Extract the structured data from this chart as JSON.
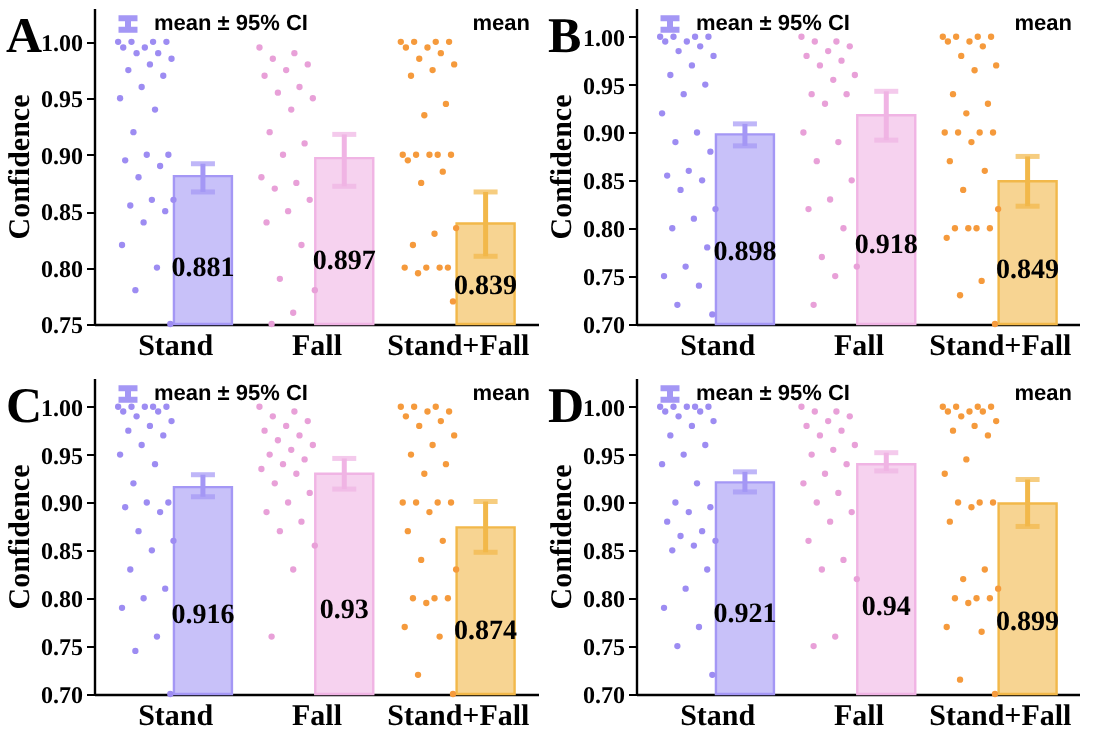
{
  "chart_data": [
    {
      "type": "bar",
      "title": "A",
      "ylabel": "Confidence",
      "categories": [
        "Stand",
        "Fall",
        "Stand+Fall"
      ],
      "ylim": [
        0.75,
        1.03
      ],
      "yticks": [
        0.75,
        {
          "value": 0.8,
          "label": "0.80"
        },
        0.85,
        {
          "value": 0.9,
          "label": "0.90"
        },
        0.95,
        {
          "value": 1,
          "label": "1.00"
        }
      ],
      "annotations": [
        "mean ± 95% CI",
        "mean"
      ],
      "series": [
        {
          "type": "bar",
          "colors": [
            "#a497f5",
            "#f0b4e4",
            "#f2b84a"
          ],
          "values": [
            0.881,
            0.897,
            0.839
          ],
          "value_labels": [
            "0.881",
            "0.897",
            "0.839"
          ],
          "errors": [
            [
              0.867,
              0.892
            ],
            [
              0.872,
              0.918
            ],
            [
              0.81,
              0.867
            ]
          ]
        },
        {
          "type": "scatter",
          "color": "#9d8cf2",
          "x": [
            "Stand",
            "Stand",
            "Stand",
            "Stand",
            "Stand",
            "Stand",
            "Stand",
            "Stand",
            "Stand",
            "Stand",
            "Stand",
            "Stand",
            "Stand",
            "Stand",
            "Stand",
            "Stand",
            "Stand",
            "Stand",
            "Stand",
            "Stand",
            "Stand",
            "Stand",
            "Stand",
            "Stand",
            "Stand",
            "Stand",
            "Stand",
            "Stand",
            "Stand",
            "Stand"
          ],
          "values": [
            1,
            1,
            1,
            1,
            0.995,
            0.995,
            0.99,
            0.99,
            0.985,
            0.98,
            0.975,
            0.97,
            0.96,
            0.95,
            0.94,
            0.92,
            0.9,
            0.9,
            0.895,
            0.89,
            0.88,
            0.86,
            0.86,
            0.855,
            0.85,
            0.84,
            0.82,
            0.8,
            0.78,
            0.75
          ]
        },
        {
          "type": "scatter",
          "color": "#e8a0d8",
          "x": [
            "Fall",
            "Fall",
            "Fall",
            "Fall",
            "Fall",
            "Fall",
            "Fall",
            "Fall",
            "Fall",
            "Fall",
            "Fall",
            "Fall",
            "Fall",
            "Fall",
            "Fall",
            "Fall",
            "Fall",
            "Fall",
            "Fall",
            "Fall",
            "Fall",
            "Fall",
            "Fall",
            "Fall"
          ],
          "values": [
            0.995,
            0.99,
            0.985,
            0.98,
            0.975,
            0.97,
            0.96,
            0.955,
            0.95,
            0.94,
            0.92,
            0.91,
            0.9,
            0.88,
            0.875,
            0.87,
            0.86,
            0.85,
            0.84,
            0.82,
            0.79,
            0.78,
            0.76,
            0.75
          ]
        },
        {
          "type": "scatter",
          "color": "#f59a3c",
          "x": [
            "Stand+Fall",
            "Stand+Fall",
            "Stand+Fall",
            "Stand+Fall",
            "Stand+Fall",
            "Stand+Fall",
            "Stand+Fall",
            "Stand+Fall",
            "Stand+Fall",
            "Stand+Fall",
            "Stand+Fall",
            "Stand+Fall",
            "Stand+Fall",
            "Stand+Fall",
            "Stand+Fall",
            "Stand+Fall",
            "Stand+Fall",
            "Stand+Fall",
            "Stand+Fall",
            "Stand+Fall",
            "Stand+Fall",
            "Stand+Fall",
            "Stand+Fall",
            "Stand+Fall",
            "Stand+Fall",
            "Stand+Fall",
            "Stand+Fall",
            "Stand+Fall",
            "Stand+Fall",
            "Stand+Fall"
          ],
          "values": [
            1,
            1,
            1,
            1,
            0.995,
            0.995,
            0.99,
            0.985,
            0.98,
            0.975,
            0.97,
            0.945,
            0.935,
            0.9,
            0.9,
            0.9,
            0.9,
            0.9,
            0.895,
            0.885,
            0.875,
            0.835,
            0.83,
            0.82,
            0.8,
            0.8,
            0.8,
            0.8,
            0.795,
            0.77
          ]
        }
      ]
    },
    {
      "type": "bar",
      "title": "B",
      "ylabel": "Confidence",
      "categories": [
        "Stand",
        "Fall",
        "Stand+Fall"
      ],
      "ylim": [
        0.7,
        1.03
      ],
      "yticks": [
        {
          "value": 0.7,
          "label": "0.70"
        },
        0.75,
        {
          "value": 0.8,
          "label": "0.80"
        },
        0.85,
        {
          "value": 0.9,
          "label": "0.90"
        },
        0.95,
        {
          "value": 1,
          "label": "1.00"
        }
      ],
      "annotations": [
        "mean ± 95% CI",
        "mean"
      ],
      "series": [
        {
          "type": "bar",
          "colors": [
            "#a497f5",
            "#f0b4e4",
            "#f2b84a"
          ],
          "values": [
            0.898,
            0.918,
            0.849
          ],
          "value_labels": [
            "0.898",
            "0.918",
            "0.849"
          ],
          "errors": [
            [
              0.886,
              0.909
            ],
            [
              0.892,
              0.943
            ],
            [
              0.823,
              0.875
            ]
          ]
        },
        {
          "type": "scatter",
          "color": "#9d8cf2",
          "x": [
            "Stand",
            "Stand",
            "Stand",
            "Stand",
            "Stand",
            "Stand",
            "Stand",
            "Stand",
            "Stand",
            "Stand",
            "Stand",
            "Stand",
            "Stand",
            "Stand",
            "Stand",
            "Stand",
            "Stand",
            "Stand",
            "Stand",
            "Stand",
            "Stand",
            "Stand",
            "Stand",
            "Stand",
            "Stand",
            "Stand",
            "Stand",
            "Stand",
            "Stand",
            "Stand"
          ],
          "values": [
            1,
            1,
            1,
            1,
            0.995,
            0.995,
            0.99,
            0.985,
            0.98,
            0.97,
            0.96,
            0.95,
            0.94,
            0.92,
            0.9,
            0.89,
            0.88,
            0.86,
            0.855,
            0.85,
            0.84,
            0.82,
            0.81,
            0.8,
            0.78,
            0.76,
            0.75,
            0.74,
            0.72,
            0.71
          ]
        },
        {
          "type": "scatter",
          "color": "#e8a0d8",
          "x": [
            "Fall",
            "Fall",
            "Fall",
            "Fall",
            "Fall",
            "Fall",
            "Fall",
            "Fall",
            "Fall",
            "Fall",
            "Fall",
            "Fall",
            "Fall",
            "Fall",
            "Fall",
            "Fall",
            "Fall",
            "Fall",
            "Fall",
            "Fall",
            "Fall",
            "Fall",
            "Fall",
            "Fall"
          ],
          "values": [
            1,
            0.995,
            0.995,
            0.99,
            0.985,
            0.98,
            0.975,
            0.97,
            0.96,
            0.955,
            0.94,
            0.94,
            0.93,
            0.9,
            0.89,
            0.87,
            0.85,
            0.83,
            0.82,
            0.8,
            0.77,
            0.76,
            0.75,
            0.72
          ]
        },
        {
          "type": "scatter",
          "color": "#f59a3c",
          "x": [
            "Stand+Fall",
            "Stand+Fall",
            "Stand+Fall",
            "Stand+Fall",
            "Stand+Fall",
            "Stand+Fall",
            "Stand+Fall",
            "Stand+Fall",
            "Stand+Fall",
            "Stand+Fall",
            "Stand+Fall",
            "Stand+Fall",
            "Stand+Fall",
            "Stand+Fall",
            "Stand+Fall",
            "Stand+Fall",
            "Stand+Fall",
            "Stand+Fall",
            "Stand+Fall",
            "Stand+Fall",
            "Stand+Fall",
            "Stand+Fall",
            "Stand+Fall",
            "Stand+Fall",
            "Stand+Fall",
            "Stand+Fall",
            "Stand+Fall",
            "Stand+Fall",
            "Stand+Fall",
            "Stand+Fall"
          ],
          "values": [
            1,
            1,
            1,
            1,
            0.995,
            0.995,
            0.99,
            0.98,
            0.97,
            0.965,
            0.94,
            0.93,
            0.92,
            0.9,
            0.9,
            0.9,
            0.9,
            0.89,
            0.87,
            0.86,
            0.84,
            0.82,
            0.8,
            0.8,
            0.8,
            0.8,
            0.79,
            0.745,
            0.73,
            0.7
          ]
        }
      ]
    },
    {
      "type": "bar",
      "title": "C",
      "ylabel": "Confidence",
      "categories": [
        "Stand",
        "Fall",
        "Stand+Fall"
      ],
      "ylim": [
        0.7,
        1.03
      ],
      "yticks": [
        {
          "value": 0.7,
          "label": "0.70"
        },
        0.75,
        {
          "value": 0.8,
          "label": "0.80"
        },
        0.85,
        {
          "value": 0.9,
          "label": "0.90"
        },
        0.95,
        {
          "value": 1,
          "label": "1.00"
        }
      ],
      "annotations": [
        "mean ± 95% CI",
        "mean"
      ],
      "series": [
        {
          "type": "bar",
          "colors": [
            "#a497f5",
            "#f0b4e4",
            "#f2b84a"
          ],
          "values": [
            0.916,
            0.93,
            0.874
          ],
          "value_labels": [
            "0.916",
            "0.93",
            "0.874"
          ],
          "errors": [
            [
              0.906,
              0.929
            ],
            [
              0.914,
              0.946
            ],
            [
              0.848,
              0.901
            ]
          ]
        },
        {
          "type": "scatter",
          "color": "#9d8cf2",
          "x": [
            "Stand",
            "Stand",
            "Stand",
            "Stand",
            "Stand",
            "Stand",
            "Stand",
            "Stand",
            "Stand",
            "Stand",
            "Stand",
            "Stand",
            "Stand",
            "Stand",
            "Stand",
            "Stand",
            "Stand",
            "Stand",
            "Stand",
            "Stand",
            "Stand",
            "Stand",
            "Stand",
            "Stand",
            "Stand",
            "Stand",
            "Stand",
            "Stand",
            "Stand",
            "Stand"
          ],
          "values": [
            1,
            1,
            1,
            1,
            1,
            0.995,
            0.995,
            0.99,
            0.985,
            0.98,
            0.975,
            0.97,
            0.96,
            0.95,
            0.94,
            0.92,
            0.9,
            0.9,
            0.895,
            0.89,
            0.87,
            0.86,
            0.85,
            0.83,
            0.81,
            0.8,
            0.79,
            0.76,
            0.745,
            0.7
          ]
        },
        {
          "type": "scatter",
          "color": "#e8a0d8",
          "x": [
            "Fall",
            "Fall",
            "Fall",
            "Fall",
            "Fall",
            "Fall",
            "Fall",
            "Fall",
            "Fall",
            "Fall",
            "Fall",
            "Fall",
            "Fall",
            "Fall",
            "Fall",
            "Fall",
            "Fall",
            "Fall",
            "Fall",
            "Fall",
            "Fall",
            "Fall",
            "Fall",
            "Fall"
          ],
          "values": [
            1,
            0.995,
            0.99,
            0.985,
            0.98,
            0.975,
            0.97,
            0.965,
            0.96,
            0.955,
            0.95,
            0.945,
            0.94,
            0.935,
            0.93,
            0.92,
            0.91,
            0.9,
            0.89,
            0.88,
            0.87,
            0.855,
            0.83,
            0.76
          ]
        },
        {
          "type": "scatter",
          "color": "#f59a3c",
          "x": [
            "Stand+Fall",
            "Stand+Fall",
            "Stand+Fall",
            "Stand+Fall",
            "Stand+Fall",
            "Stand+Fall",
            "Stand+Fall",
            "Stand+Fall",
            "Stand+Fall",
            "Stand+Fall",
            "Stand+Fall",
            "Stand+Fall",
            "Stand+Fall",
            "Stand+Fall",
            "Stand+Fall",
            "Stand+Fall",
            "Stand+Fall",
            "Stand+Fall",
            "Stand+Fall",
            "Stand+Fall",
            "Stand+Fall",
            "Stand+Fall",
            "Stand+Fall",
            "Stand+Fall",
            "Stand+Fall",
            "Stand+Fall",
            "Stand+Fall",
            "Stand+Fall",
            "Stand+Fall",
            "Stand+Fall"
          ],
          "values": [
            1,
            1,
            1,
            0.995,
            0.995,
            0.99,
            0.985,
            0.98,
            0.97,
            0.96,
            0.95,
            0.94,
            0.93,
            0.9,
            0.9,
            0.9,
            0.9,
            0.89,
            0.87,
            0.86,
            0.84,
            0.83,
            0.8,
            0.8,
            0.8,
            0.795,
            0.77,
            0.76,
            0.72,
            0.7
          ]
        }
      ]
    },
    {
      "type": "bar",
      "title": "D",
      "ylabel": "Confidence",
      "categories": [
        "Stand",
        "Fall",
        "Stand+Fall"
      ],
      "ylim": [
        0.7,
        1.03
      ],
      "yticks": [
        {
          "value": 0.7,
          "label": "0.70"
        },
        0.75,
        {
          "value": 0.8,
          "label": "0.80"
        },
        0.85,
        {
          "value": 0.9,
          "label": "0.90"
        },
        0.95,
        {
          "value": 1,
          "label": "1.00"
        }
      ],
      "annotations": [
        "mean ± 95% CI",
        "mean"
      ],
      "series": [
        {
          "type": "bar",
          "colors": [
            "#a497f5",
            "#f0b4e4",
            "#f2b84a"
          ],
          "values": [
            0.921,
            0.94,
            0.899
          ],
          "value_labels": [
            "0.921",
            "0.94",
            "0.899"
          ],
          "errors": [
            [
              0.911,
              0.932
            ],
            [
              0.933,
              0.952
            ],
            [
              0.875,
              0.924
            ]
          ]
        },
        {
          "type": "scatter",
          "color": "#9d8cf2",
          "x": [
            "Stand",
            "Stand",
            "Stand",
            "Stand",
            "Stand",
            "Stand",
            "Stand",
            "Stand",
            "Stand",
            "Stand",
            "Stand",
            "Stand",
            "Stand",
            "Stand",
            "Stand",
            "Stand",
            "Stand",
            "Stand",
            "Stand",
            "Stand",
            "Stand",
            "Stand",
            "Stand",
            "Stand",
            "Stand",
            "Stand",
            "Stand",
            "Stand",
            "Stand",
            "Stand"
          ],
          "values": [
            1,
            1,
            1,
            1,
            1,
            0.995,
            0.995,
            0.99,
            0.985,
            0.98,
            0.97,
            0.96,
            0.95,
            0.94,
            0.92,
            0.9,
            0.895,
            0.89,
            0.88,
            0.87,
            0.865,
            0.86,
            0.855,
            0.85,
            0.83,
            0.81,
            0.79,
            0.77,
            0.75,
            0.72
          ]
        },
        {
          "type": "scatter",
          "color": "#e8a0d8",
          "x": [
            "Fall",
            "Fall",
            "Fall",
            "Fall",
            "Fall",
            "Fall",
            "Fall",
            "Fall",
            "Fall",
            "Fall",
            "Fall",
            "Fall",
            "Fall",
            "Fall",
            "Fall",
            "Fall",
            "Fall",
            "Fall",
            "Fall",
            "Fall",
            "Fall",
            "Fall",
            "Fall",
            "Fall"
          ],
          "values": [
            1,
            0.995,
            0.995,
            0.99,
            0.985,
            0.98,
            0.975,
            0.97,
            0.96,
            0.955,
            0.95,
            0.94,
            0.93,
            0.92,
            0.91,
            0.9,
            0.89,
            0.88,
            0.86,
            0.84,
            0.83,
            0.82,
            0.76,
            0.75
          ]
        },
        {
          "type": "scatter",
          "color": "#f59a3c",
          "x": [
            "Stand+Fall",
            "Stand+Fall",
            "Stand+Fall",
            "Stand+Fall",
            "Stand+Fall",
            "Stand+Fall",
            "Stand+Fall",
            "Stand+Fall",
            "Stand+Fall",
            "Stand+Fall",
            "Stand+Fall",
            "Stand+Fall",
            "Stand+Fall",
            "Stand+Fall",
            "Stand+Fall",
            "Stand+Fall",
            "Stand+Fall",
            "Stand+Fall",
            "Stand+Fall",
            "Stand+Fall",
            "Stand+Fall",
            "Stand+Fall",
            "Stand+Fall",
            "Stand+Fall",
            "Stand+Fall",
            "Stand+Fall",
            "Stand+Fall",
            "Stand+Fall",
            "Stand+Fall",
            "Stand+Fall"
          ],
          "values": [
            1,
            1,
            1,
            1,
            0.995,
            0.995,
            0.995,
            0.99,
            0.985,
            0.98,
            0.975,
            0.97,
            0.945,
            0.93,
            0.9,
            0.9,
            0.9,
            0.895,
            0.88,
            0.83,
            0.82,
            0.81,
            0.8,
            0.8,
            0.8,
            0.795,
            0.77,
            0.765,
            0.715,
            0.7
          ]
        }
      ]
    }
  ]
}
